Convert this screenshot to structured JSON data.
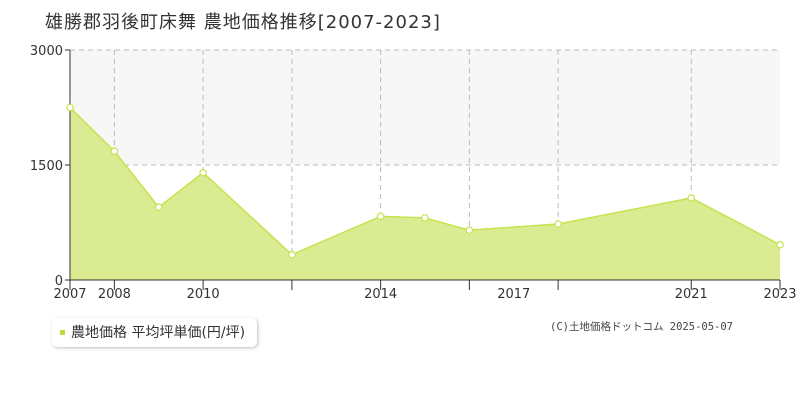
{
  "title": "雄勝郡羽後町床舞 農地価格推移[2007-2023]",
  "legend": {
    "label": "農地価格 平均坪単価(円/坪)"
  },
  "credit": "(C)土地価格ドットコム 2025-05-07",
  "colors": {
    "fill": "#dbeb92",
    "line": "#c5e34f",
    "accent": "#b9dc40",
    "grid": "#bbbbbb",
    "band": "#f8f7f7"
  },
  "chart_data": {
    "type": "area",
    "x": [
      2007,
      2008,
      2009,
      2010,
      2012,
      2014,
      2015,
      2016,
      2018,
      2021,
      2023
    ],
    "series": [
      {
        "name": "農地価格 平均坪単価(円/坪)",
        "values": [
          2250,
          1680,
          950,
          1400,
          330,
          830,
          810,
          650,
          730,
          1070,
          460
        ]
      }
    ],
    "xlim": [
      2007,
      2023
    ],
    "ylim": [
      0,
      3000
    ],
    "yticks": [
      0,
      1500,
      3000
    ],
    "xtick_labels": [
      "2007",
      "2008",
      "2010",
      "2014",
      "2017",
      "2021",
      "2023"
    ],
    "grid": true,
    "legend_position": "bottom-left"
  }
}
